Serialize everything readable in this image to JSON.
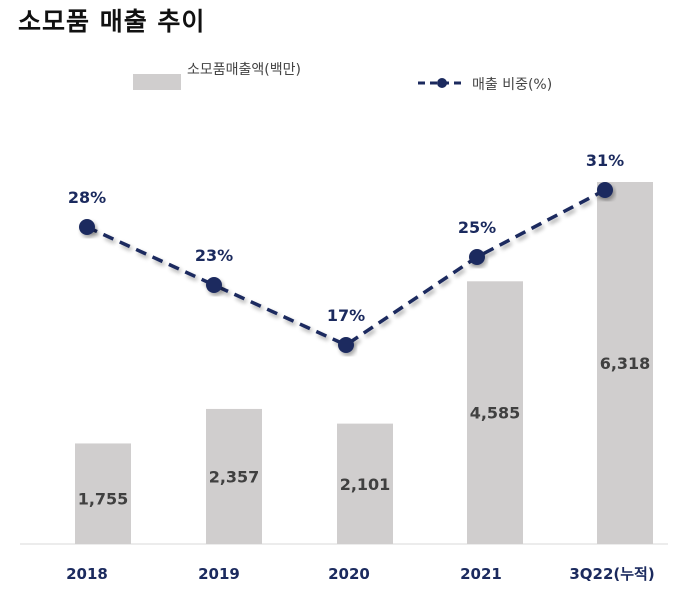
{
  "chart_data": {
    "type": "bar",
    "title": "소모품 매출 추이",
    "categories": [
      "2018",
      "2019",
      "2020",
      "2021",
      "3Q22(누적)"
    ],
    "series": [
      {
        "name": "소모품매출액(백만)",
        "type": "bar",
        "values": [
          1755,
          2357,
          2101,
          4585,
          6318
        ],
        "labels": [
          "1,755",
          "2,357",
          "2,101",
          "4,585",
          "6,318"
        ]
      },
      {
        "name": "매출 비중(%)",
        "type": "line",
        "values": [
          28,
          23,
          17,
          25,
          31
        ],
        "labels": [
          "28%",
          "23%",
          "17%",
          "25%",
          "31%"
        ]
      }
    ],
    "legend_position": "top",
    "grid": false,
    "colors": {
      "bar": "#d0cece",
      "line": "#1b2a5e",
      "axis": "#d9d9d9"
    }
  }
}
